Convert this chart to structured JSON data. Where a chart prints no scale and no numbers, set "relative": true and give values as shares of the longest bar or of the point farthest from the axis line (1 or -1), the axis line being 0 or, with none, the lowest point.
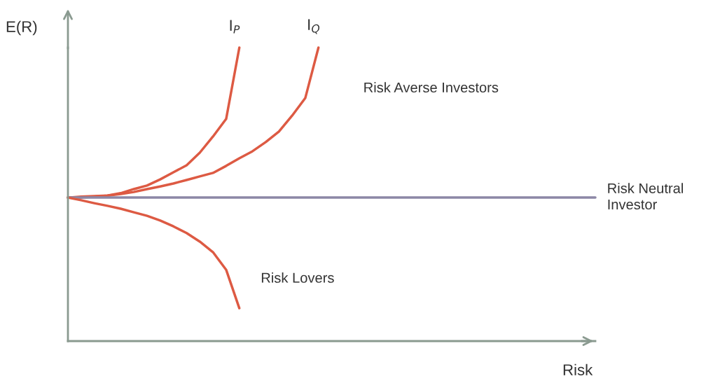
{
  "chart_data": {
    "type": "line",
    "relative": true,
    "xlabel": "Risk",
    "ylabel": "E(R)",
    "grid": false,
    "legend": false,
    "marker": "none",
    "line_style": "solid",
    "annotations": [
      "Risk Averse Investors"
    ],
    "categories": [
      null,
      null,
      null,
      null,
      null,
      null,
      null,
      null,
      null,
      null,
      null,
      null,
      null,
      null,
      null,
      null,
      null,
      null,
      null,
      null,
      null,
      null,
      null,
      null,
      null,
      null,
      null,
      null,
      null,
      null,
      null,
      null,
      null,
      null,
      null,
      null,
      null,
      null,
      null,
      null,
      null
    ],
    "series": [
      {
        "name": "I$_{P}$",
        "color": "#dd5a43",
        "values": [
          0.489,
          0.489,
          0.492,
          0.496,
          0.504,
          0.518,
          0.53,
          0.551,
          0.575,
          0.599,
          0.642,
          0.697,
          0.757,
          1,
          null,
          null,
          null,
          null,
          null,
          null,
          null,
          null,
          null,
          null,
          null,
          null,
          null,
          null,
          null,
          null,
          null,
          null,
          null,
          null,
          null,
          null,
          null,
          null,
          null,
          null,
          null
        ]
      },
      {
        "name": "I$_{Q}$",
        "color": "#dd5a43",
        "values": [
          0.489,
          0.492,
          0.494,
          0.496,
          0.501,
          0.508,
          0.518,
          0.527,
          0.537,
          0.549,
          0.561,
          0.573,
          0.597,
          0.623,
          0.647,
          0.678,
          0.714,
          0.768,
          0.828,
          1,
          null,
          null,
          null,
          null,
          null,
          null,
          null,
          null,
          null,
          null,
          null,
          null,
          null,
          null,
          null,
          null,
          null,
          null,
          null,
          null,
          null
        ]
      },
      {
        "name": "Risk Neutral\nInvestor",
        "color": "#8c87a6",
        "values": [
          0.489,
          0.489,
          0.489,
          0.489,
          0.489,
          0.489,
          0.489,
          0.489,
          0.489,
          0.489,
          0.489,
          0.489,
          0.489,
          0.489,
          0.489,
          0.489,
          0.489,
          0.489,
          0.489,
          0.489,
          0.489,
          0.489,
          0.489,
          0.489,
          0.489,
          0.489,
          0.489,
          0.489,
          0.489,
          0.489,
          0.489,
          0.489,
          0.489,
          0.489,
          0.489,
          0.489,
          0.489,
          0.489,
          0.489,
          0.489,
          0.489
        ]
      },
      {
        "name": "Risk Lovers",
        "color": "#dd5a43",
        "values": [
          0.489,
          0.48,
          0.47,
          0.461,
          0.451,
          0.439,
          0.427,
          0.411,
          0.391,
          0.368,
          0.339,
          0.303,
          0.243,
          0.112,
          null,
          null,
          null,
          null,
          null,
          null,
          null,
          null,
          null,
          null,
          null,
          null,
          null,
          null,
          null,
          null,
          null,
          null,
          null,
          null,
          null,
          null,
          null,
          null,
          null,
          null,
          null
        ]
      }
    ]
  }
}
